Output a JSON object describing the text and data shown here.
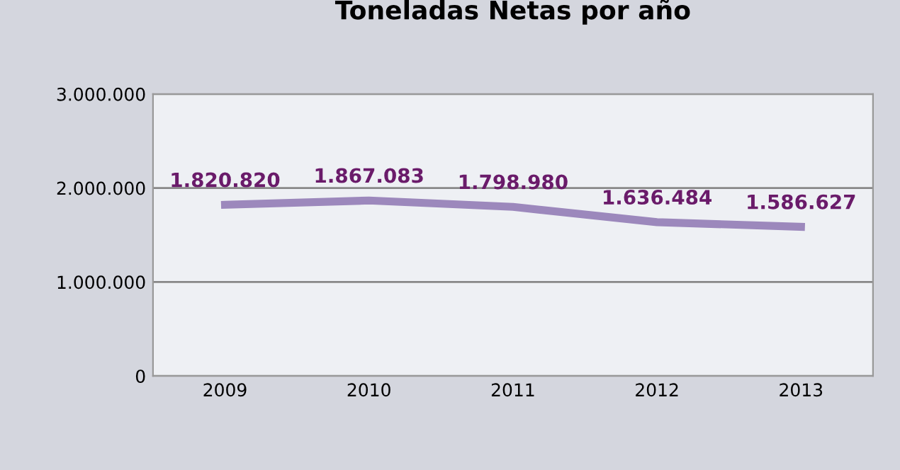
{
  "chart_data": {
    "type": "line",
    "title": "Toneladas Netas por año",
    "categories": [
      "2009",
      "2010",
      "2011",
      "2012",
      "2013"
    ],
    "series": [
      {
        "color": "#9c88bc",
        "values": [
          1820820,
          1867083,
          1798980,
          1636484,
          1586627
        ],
        "value_labels": [
          "1.820.820",
          "1.867.083",
          "1.798.980",
          "1.636.484",
          "1.586.627"
        ]
      }
    ],
    "ylim": [
      0,
      3000000
    ],
    "yticks": [
      {
        "value": 0,
        "label": "0"
      },
      {
        "value": 1000000,
        "label": "1.000.000"
      },
      {
        "value": 2000000,
        "label": "2.000.000"
      },
      {
        "value": 3000000,
        "label": "3.000.000"
      }
    ],
    "grid": "y",
    "marker": "none",
    "line_style": "solid",
    "legend": false
  }
}
